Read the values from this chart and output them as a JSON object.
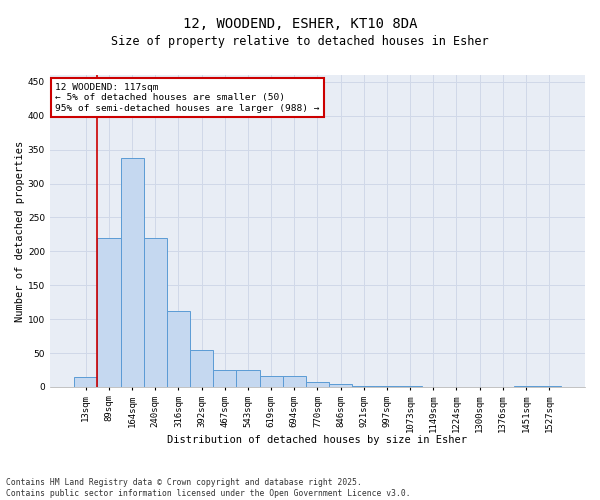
{
  "title_line1": "12, WOODEND, ESHER, KT10 8DA",
  "title_line2": "Size of property relative to detached houses in Esher",
  "xlabel": "Distribution of detached houses by size in Esher",
  "ylabel": "Number of detached properties",
  "bar_labels": [
    "13sqm",
    "89sqm",
    "164sqm",
    "240sqm",
    "316sqm",
    "392sqm",
    "467sqm",
    "543sqm",
    "619sqm",
    "694sqm",
    "770sqm",
    "846sqm",
    "921sqm",
    "997sqm",
    "1073sqm",
    "1149sqm",
    "1224sqm",
    "1300sqm",
    "1376sqm",
    "1451sqm",
    "1527sqm"
  ],
  "bar_heights": [
    15,
    220,
    338,
    220,
    112,
    55,
    25,
    25,
    16,
    16,
    7,
    5,
    1,
    1,
    1,
    0,
    0,
    0,
    0,
    2,
    1
  ],
  "bar_color": "#c5d8f0",
  "bar_edge_color": "#5b9bd5",
  "red_line_index": 1,
  "annotation_text": "12 WOODEND: 117sqm\n← 5% of detached houses are smaller (50)\n95% of semi-detached houses are larger (988) →",
  "annotation_box_color": "#ffffff",
  "annotation_box_edge_color": "#cc0000",
  "ylim": [
    0,
    460
  ],
  "yticks": [
    0,
    50,
    100,
    150,
    200,
    250,
    300,
    350,
    400,
    450
  ],
  "grid_color": "#d0d8e8",
  "background_color": "#e8edf5",
  "footer_text": "Contains HM Land Registry data © Crown copyright and database right 2025.\nContains public sector information licensed under the Open Government Licence v3.0.",
  "title_fontsize": 10,
  "subtitle_fontsize": 8.5,
  "label_fontsize": 7.5,
  "tick_fontsize": 6.5,
  "annotation_fontsize": 6.8,
  "footer_fontsize": 5.8
}
